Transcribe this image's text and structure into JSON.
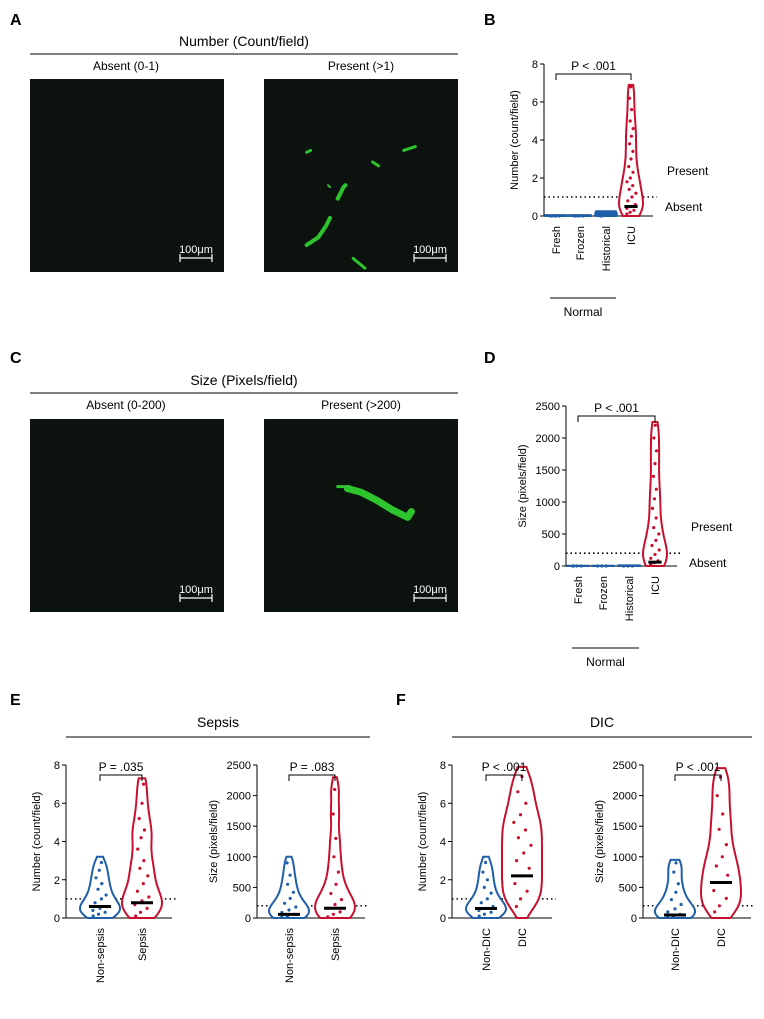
{
  "panels": {
    "A": "A",
    "B": "B",
    "C": "C",
    "D": "D",
    "E": "E",
    "F": "F"
  },
  "micro": [
    {
      "id": "A",
      "title": "Number (Count/field)",
      "left_label": "Absent (0-1)",
      "right_label": "Present (>1)",
      "scale": "100μm",
      "fluorescence": [
        {
          "points": [
            [
              0.22,
              0.86
            ],
            [
              0.28,
              0.82
            ],
            [
              0.32,
              0.76
            ],
            [
              0.34,
              0.72
            ]
          ],
          "width": 4
        },
        {
          "points": [
            [
              0.38,
              0.62
            ],
            [
              0.41,
              0.56
            ],
            [
              0.42,
              0.55
            ]
          ],
          "width": 4
        },
        {
          "points": [
            [
              0.22,
              0.38
            ],
            [
              0.24,
              0.37
            ]
          ],
          "width": 3
        },
        {
          "points": [
            [
              0.56,
              0.43
            ],
            [
              0.59,
              0.45
            ]
          ],
          "width": 3
        },
        {
          "points": [
            [
              0.72,
              0.37
            ],
            [
              0.78,
              0.35
            ]
          ],
          "width": 3
        },
        {
          "points": [
            [
              0.46,
              0.93
            ],
            [
              0.52,
              0.98
            ]
          ],
          "width": 3
        },
        {
          "points": [
            [
              0.33,
              0.55
            ],
            [
              0.34,
              0.56
            ]
          ],
          "width": 2
        }
      ]
    },
    {
      "id": "C",
      "title": "Size (Pixels/field)",
      "left_label": "Absent (0-200)",
      "right_label": "Present (>200)",
      "scale": "100μm",
      "fluorescence": [
        {
          "points": [
            [
              0.43,
              0.36
            ],
            [
              0.5,
              0.38
            ],
            [
              0.58,
              0.42
            ],
            [
              0.66,
              0.47
            ],
            [
              0.74,
              0.51
            ],
            [
              0.76,
              0.48
            ]
          ],
          "width": 7
        },
        {
          "points": [
            [
              0.38,
              0.35
            ],
            [
              0.44,
              0.35
            ]
          ],
          "width": 3
        }
      ]
    }
  ],
  "chart_data": [
    {
      "id": "B",
      "type": "violin",
      "ylabel": "Number (count/field)",
      "ylim": [
        0,
        8
      ],
      "yticks": [
        0,
        2,
        4,
        6,
        8
      ],
      "categories": [
        "Fresh",
        "Frozen",
        "Historical",
        "ICU"
      ],
      "group_label": "Normal",
      "group_members": [
        "Fresh",
        "Frozen",
        "Historical"
      ],
      "threshold": 1,
      "threshold_labels": {
        "above": "Present",
        "below": "Absent"
      },
      "p_value": "P < .001",
      "comparison": [
        "Fresh",
        "ICU"
      ],
      "series": [
        {
          "name": "Fresh",
          "color": "#1f5fa8",
          "max": 0.05,
          "median": 0,
          "points": [
            0,
            0,
            0,
            0,
            0
          ]
        },
        {
          "name": "Frozen",
          "color": "#1f5fa8",
          "max": 0.05,
          "median": 0,
          "points": [
            0,
            0,
            0,
            0
          ]
        },
        {
          "name": "Historical",
          "color": "#1f5fa8",
          "max": 0.25,
          "median": 0,
          "points": [
            0,
            0.1,
            0.2,
            0,
            0.05
          ]
        },
        {
          "name": "ICU",
          "color": "#c8102e",
          "max": 6.9,
          "median": 0.5,
          "points": [
            0.1,
            0.2,
            0.3,
            0.4,
            0.5,
            0.6,
            0.8,
            1.0,
            1.2,
            1.4,
            1.6,
            1.8,
            2.0,
            2.3,
            2.6,
            3.0,
            3.4,
            3.8,
            4.2,
            4.6,
            5.0,
            5.6,
            6.2,
            6.8
          ]
        }
      ]
    },
    {
      "id": "D",
      "type": "violin",
      "ylabel": "Size (pixels/field)",
      "ylim": [
        0,
        2500
      ],
      "yticks": [
        0,
        500,
        1000,
        1500,
        2000,
        2500
      ],
      "categories": [
        "Fresh",
        "Frozen",
        "Historical",
        "ICU"
      ],
      "group_label": "Normal",
      "group_members": [
        "Fresh",
        "Frozen",
        "Historical"
      ],
      "threshold": 200,
      "threshold_labels": {
        "above": "Present",
        "below": "Absent"
      },
      "p_value": "P < .001",
      "comparison": [
        "Fresh",
        "ICU"
      ],
      "series": [
        {
          "name": "Fresh",
          "color": "#1f5fa8",
          "max": 5,
          "median": 0,
          "points": [
            0,
            0,
            0,
            0
          ]
        },
        {
          "name": "Frozen",
          "color": "#1f5fa8",
          "max": 5,
          "median": 0,
          "points": [
            0,
            0,
            0
          ]
        },
        {
          "name": "Historical",
          "color": "#1f5fa8",
          "max": 10,
          "median": 0,
          "points": [
            0,
            0,
            0
          ]
        },
        {
          "name": "ICU",
          "color": "#c8102e",
          "max": 2250,
          "median": 60,
          "points": [
            20,
            50,
            80,
            120,
            180,
            250,
            320,
            400,
            500,
            600,
            750,
            900,
            1050,
            1200,
            1400,
            1600,
            1800,
            2000,
            2200
          ]
        }
      ]
    },
    {
      "id": "E1",
      "type": "violin",
      "ylabel": "Number (count/field)",
      "ylim": [
        0,
        8
      ],
      "yticks": [
        0,
        2,
        4,
        6,
        8
      ],
      "categories": [
        "Non-sepsis",
        "Sepsis"
      ],
      "threshold": 1,
      "p_value": "P = .035",
      "comparison": [
        "Non-sepsis",
        "Sepsis"
      ],
      "series": [
        {
          "name": "Non-sepsis",
          "color": "#1f5fa8",
          "max": 3.2,
          "median": 0.6,
          "points": [
            0.1,
            0.2,
            0.3,
            0.4,
            0.5,
            0.6,
            0.8,
            1.0,
            1.2,
            1.5,
            1.8,
            2.1,
            2.5,
            2.9
          ]
        },
        {
          "name": "Sepsis",
          "color": "#c8102e",
          "max": 7.3,
          "median": 0.8,
          "points": [
            0.1,
            0.3,
            0.5,
            0.7,
            0.9,
            1.1,
            1.4,
            1.8,
            2.2,
            2.6,
            3.0,
            3.6,
            4.2,
            4.6,
            5.2,
            6.0,
            7.0
          ]
        }
      ]
    },
    {
      "id": "E2",
      "type": "violin",
      "ylabel": "Size (pixels/field)",
      "ylim": [
        0,
        2500
      ],
      "yticks": [
        0,
        500,
        1000,
        1500,
        2000,
        2500
      ],
      "categories": [
        "Non-sepsis",
        "Sepsis"
      ],
      "threshold": 200,
      "p_value": "P = .083",
      "comparison": [
        "Non-sepsis",
        "Sepsis"
      ],
      "series": [
        {
          "name": "Non-sepsis",
          "color": "#1f5fa8",
          "max": 1000,
          "median": 60,
          "points": [
            10,
            30,
            60,
            90,
            130,
            180,
            240,
            320,
            420,
            550,
            700,
            900
          ]
        },
        {
          "name": "Sepsis",
          "color": "#c8102e",
          "max": 2300,
          "median": 160,
          "points": [
            20,
            60,
            100,
            160,
            220,
            300,
            400,
            550,
            750,
            1000,
            1300,
            1700,
            2100
          ]
        }
      ]
    },
    {
      "id": "F1",
      "type": "violin",
      "ylabel": "Number (count/field)",
      "ylim": [
        0,
        8
      ],
      "yticks": [
        0,
        2,
        4,
        6,
        8
      ],
      "categories": [
        "Non-DIC",
        "DIC"
      ],
      "threshold": 1,
      "p_value": "P < .001",
      "comparison": [
        "Non-DIC",
        "DIC"
      ],
      "series": [
        {
          "name": "Non-DIC",
          "color": "#1f5fa8",
          "max": 3.2,
          "median": 0.5,
          "points": [
            0.1,
            0.2,
            0.3,
            0.4,
            0.5,
            0.6,
            0.8,
            1.0,
            1.3,
            1.6,
            2.0,
            2.4,
            2.9
          ]
        },
        {
          "name": "DIC",
          "color": "#c8102e",
          "max": 7.9,
          "median": 2.2,
          "points": [
            0.6,
            1.0,
            1.4,
            1.8,
            2.2,
            2.6,
            3.0,
            3.4,
            3.8,
            4.2,
            4.6,
            5.0,
            5.4,
            6.0,
            6.6,
            7.4
          ]
        }
      ]
    },
    {
      "id": "F2",
      "type": "violin",
      "ylabel": "Size (pixels/field)",
      "ylim": [
        0,
        2500
      ],
      "yticks": [
        0,
        500,
        1000,
        1500,
        2000,
        2500
      ],
      "categories": [
        "Non-DIC",
        "DIC"
      ],
      "threshold": 200,
      "p_value": "P < .001",
      "comparison": [
        "Non-DIC",
        "DIC"
      ],
      "series": [
        {
          "name": "Non-DIC",
          "color": "#1f5fa8",
          "max": 950,
          "median": 50,
          "points": [
            10,
            30,
            60,
            100,
            150,
            220,
            300,
            420,
            560,
            750,
            900
          ]
        },
        {
          "name": "DIC",
          "color": "#c8102e",
          "max": 2450,
          "median": 580,
          "points": [
            100,
            200,
            320,
            450,
            580,
            700,
            850,
            1000,
            1200,
            1450,
            1700,
            2000,
            2300
          ]
        }
      ]
    }
  ],
  "section_titles": {
    "E": "Sepsis",
    "F": "DIC"
  }
}
